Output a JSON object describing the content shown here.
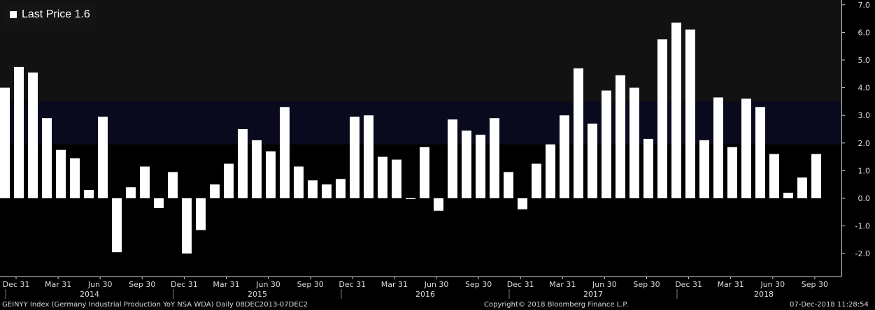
{
  "legend": {
    "label": "Last Price 1.6",
    "color": "#ffffff"
  },
  "footer": {
    "index": "GEINYY Index (Germany Industrial Production YoY NSA WDA)  Daily 08DEC2013-07DEC2",
    "copyright": "Copyright© 2018 Bloomberg Finance L.P.",
    "timestamp": "07-Dec-2018 11:28:54"
  },
  "colors": {
    "background": "#000000",
    "upper_panel": "#121212",
    "highlight_band": "#0a0a1e",
    "bars": "#ffffff",
    "axis": "#d0d0d0"
  },
  "chart_data": {
    "type": "bar",
    "series": [
      {
        "name": "Last Price",
        "values": [
          4.0,
          4.75,
          4.55,
          2.9,
          1.75,
          1.45,
          0.3,
          2.95,
          -1.95,
          0.4,
          1.15,
          -0.35,
          0.95,
          -2.0,
          -1.15,
          0.5,
          1.25,
          2.5,
          2.1,
          1.7,
          3.3,
          1.15,
          0.65,
          0.5,
          0.7,
          2.95,
          3.0,
          1.5,
          1.4,
          0.0,
          1.85,
          -0.45,
          2.85,
          2.45,
          2.3,
          2.9,
          0.95,
          -0.4,
          1.25,
          1.95,
          3.0,
          4.7,
          2.7,
          3.9,
          4.45,
          4.0,
          2.15,
          5.75,
          6.35,
          6.1,
          2.1,
          3.65,
          1.85,
          3.6,
          3.3,
          1.6,
          0.2,
          0.75,
          1.6
        ]
      }
    ],
    "yticks": [
      "7.0",
      "6.0",
      "5.0",
      "4.0",
      "3.0",
      "2.0",
      "1.0",
      "0.0",
      "-1.0",
      "-2.0"
    ],
    "ylim": [
      -2.7,
      7.0
    ],
    "highlight_band": [
      1.95,
      3.5
    ],
    "xticks": [
      "Dec 31",
      "Mar 31",
      "Jun 30",
      "Sep 30",
      "Dec 31",
      "Mar 31",
      "Jun 30",
      "Sep 30",
      "Dec 31",
      "Mar 31",
      "Jun 30",
      "Sep 30",
      "Dec 31",
      "Mar 31",
      "Jun 30",
      "Sep 30",
      "Dec 31",
      "Mar 31",
      "Jun 30",
      "Sep 30"
    ],
    "years": [
      "2014",
      "2015",
      "2016",
      "2017",
      "2018"
    ],
    "grid": false,
    "legend_position": "top-left"
  }
}
